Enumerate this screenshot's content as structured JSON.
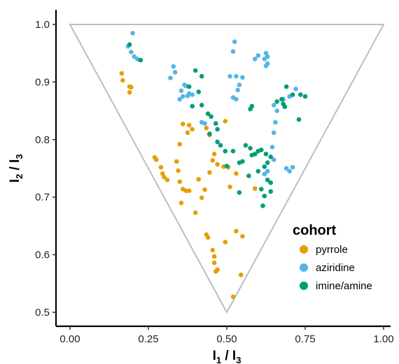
{
  "chart_data": {
    "type": "scatter",
    "title": "",
    "xlabel": {
      "main": "I",
      "sub1": "1",
      "mid": " / I",
      "sub2": "3"
    },
    "ylabel": {
      "main": "I",
      "sub1": "2",
      "mid": " / I",
      "sub2": "3"
    },
    "xlim": [
      0,
      1
    ],
    "ylim": [
      0.5,
      1
    ],
    "x_ticks": [
      0,
      0.25,
      0.5,
      0.75,
      1
    ],
    "x_tick_labels": [
      "0.00",
      "0.25",
      "0.50",
      "0.75",
      "1.00"
    ],
    "y_ticks": [
      0.5,
      0.6,
      0.7,
      0.8,
      0.9,
      1.0
    ],
    "y_tick_labels": [
      "0.5",
      "0.6",
      "0.7",
      "0.8",
      "0.9",
      "1.0"
    ],
    "grid": false,
    "boundary": {
      "shape": "triangle",
      "vertices": [
        [
          0,
          1
        ],
        [
          1,
          1
        ],
        [
          0.5,
          0.5
        ]
      ],
      "color": "#bdbdbd"
    },
    "legend": {
      "title": "cohort",
      "position": "right"
    },
    "series": [
      {
        "name": "pyrrole",
        "color": "#E69F00",
        "points": [
          [
            0.165,
            0.915
          ],
          [
            0.168,
            0.903
          ],
          [
            0.19,
            0.892
          ],
          [
            0.195,
            0.891
          ],
          [
            0.19,
            0.882
          ],
          [
            0.36,
            0.827
          ],
          [
            0.38,
            0.825
          ],
          [
            0.39,
            0.818
          ],
          [
            0.375,
            0.812
          ],
          [
            0.35,
            0.792
          ],
          [
            0.435,
            0.82
          ],
          [
            0.445,
            0.808
          ],
          [
            0.495,
            0.832
          ],
          [
            0.27,
            0.769
          ],
          [
            0.275,
            0.765
          ],
          [
            0.29,
            0.752
          ],
          [
            0.295,
            0.741
          ],
          [
            0.3,
            0.735
          ],
          [
            0.31,
            0.73
          ],
          [
            0.34,
            0.762
          ],
          [
            0.345,
            0.746
          ],
          [
            0.35,
            0.727
          ],
          [
            0.36,
            0.714
          ],
          [
            0.37,
            0.711
          ],
          [
            0.38,
            0.711
          ],
          [
            0.355,
            0.69
          ],
          [
            0.41,
            0.731
          ],
          [
            0.46,
            0.775
          ],
          [
            0.455,
            0.764
          ],
          [
            0.47,
            0.757
          ],
          [
            0.49,
            0.753
          ],
          [
            0.445,
            0.743
          ],
          [
            0.43,
            0.713
          ],
          [
            0.42,
            0.699
          ],
          [
            0.4,
            0.673
          ],
          [
            0.51,
            0.718
          ],
          [
            0.53,
            0.741
          ],
          [
            0.505,
            0.752
          ],
          [
            0.59,
            0.715
          ],
          [
            0.435,
            0.635
          ],
          [
            0.44,
            0.63
          ],
          [
            0.455,
            0.608
          ],
          [
            0.46,
            0.597
          ],
          [
            0.46,
            0.586
          ],
          [
            0.47,
            0.574
          ],
          [
            0.465,
            0.571
          ],
          [
            0.495,
            0.622
          ],
          [
            0.53,
            0.641
          ],
          [
            0.55,
            0.632
          ],
          [
            0.545,
            0.565
          ],
          [
            0.52,
            0.527
          ]
        ]
      },
      {
        "name": "aziridine",
        "color": "#56B4E9",
        "points": [
          [
            0.2,
            0.985
          ],
          [
            0.185,
            0.962
          ],
          [
            0.195,
            0.952
          ],
          [
            0.205,
            0.944
          ],
          [
            0.215,
            0.94
          ],
          [
            0.32,
            0.907
          ],
          [
            0.335,
            0.917
          ],
          [
            0.33,
            0.927
          ],
          [
            0.355,
            0.885
          ],
          [
            0.365,
            0.895
          ],
          [
            0.37,
            0.893
          ],
          [
            0.38,
            0.88
          ],
          [
            0.39,
            0.878
          ],
          [
            0.375,
            0.876
          ],
          [
            0.36,
            0.875
          ],
          [
            0.35,
            0.87
          ],
          [
            0.42,
            0.83
          ],
          [
            0.43,
            0.828
          ],
          [
            0.525,
            0.97
          ],
          [
            0.52,
            0.953
          ],
          [
            0.51,
            0.91
          ],
          [
            0.53,
            0.91
          ],
          [
            0.54,
            0.895
          ],
          [
            0.55,
            0.908
          ],
          [
            0.535,
            0.886
          ],
          [
            0.52,
            0.873
          ],
          [
            0.53,
            0.87
          ],
          [
            0.59,
            0.94
          ],
          [
            0.6,
            0.946
          ],
          [
            0.62,
            0.94
          ],
          [
            0.625,
            0.95
          ],
          [
            0.63,
            0.944
          ],
          [
            0.63,
            0.932
          ],
          [
            0.625,
            0.928
          ],
          [
            0.72,
            0.888
          ],
          [
            0.7,
            0.875
          ],
          [
            0.68,
            0.87
          ],
          [
            0.65,
            0.86
          ],
          [
            0.66,
            0.85
          ],
          [
            0.655,
            0.83
          ],
          [
            0.65,
            0.812
          ],
          [
            0.645,
            0.787
          ],
          [
            0.65,
            0.765
          ],
          [
            0.63,
            0.745
          ],
          [
            0.62,
            0.74
          ],
          [
            0.69,
            0.75
          ],
          [
            0.7,
            0.745
          ],
          [
            0.71,
            0.752
          ]
        ]
      },
      {
        "name": "imine/amine",
        "color": "#009E73",
        "points": [
          [
            0.225,
            0.938
          ],
          [
            0.19,
            0.965
          ],
          [
            0.4,
            0.92
          ],
          [
            0.42,
            0.91
          ],
          [
            0.38,
            0.892
          ],
          [
            0.41,
            0.883
          ],
          [
            0.42,
            0.86
          ],
          [
            0.39,
            0.858
          ],
          [
            0.44,
            0.845
          ],
          [
            0.45,
            0.84
          ],
          [
            0.465,
            0.828
          ],
          [
            0.47,
            0.818
          ],
          [
            0.445,
            0.81
          ],
          [
            0.47,
            0.796
          ],
          [
            0.48,
            0.79
          ],
          [
            0.495,
            0.78
          ],
          [
            0.5,
            0.754
          ],
          [
            0.54,
            0.76
          ],
          [
            0.55,
            0.762
          ],
          [
            0.56,
            0.79
          ],
          [
            0.575,
            0.785
          ],
          [
            0.58,
            0.773
          ],
          [
            0.59,
            0.775
          ],
          [
            0.6,
            0.78
          ],
          [
            0.61,
            0.782
          ],
          [
            0.625,
            0.775
          ],
          [
            0.64,
            0.77
          ],
          [
            0.63,
            0.76
          ],
          [
            0.62,
            0.753
          ],
          [
            0.6,
            0.745
          ],
          [
            0.57,
            0.737
          ],
          [
            0.63,
            0.73
          ],
          [
            0.64,
            0.725
          ],
          [
            0.61,
            0.714
          ],
          [
            0.62,
            0.702
          ],
          [
            0.64,
            0.71
          ],
          [
            0.615,
            0.685
          ],
          [
            0.54,
            0.708
          ],
          [
            0.52,
            0.78
          ],
          [
            0.58,
            0.858
          ],
          [
            0.575,
            0.853
          ],
          [
            0.66,
            0.866
          ],
          [
            0.675,
            0.87
          ],
          [
            0.68,
            0.862
          ],
          [
            0.685,
            0.857
          ],
          [
            0.69,
            0.892
          ],
          [
            0.71,
            0.878
          ],
          [
            0.735,
            0.878
          ],
          [
            0.75,
            0.875
          ],
          [
            0.73,
            0.835
          ]
        ]
      }
    ]
  }
}
